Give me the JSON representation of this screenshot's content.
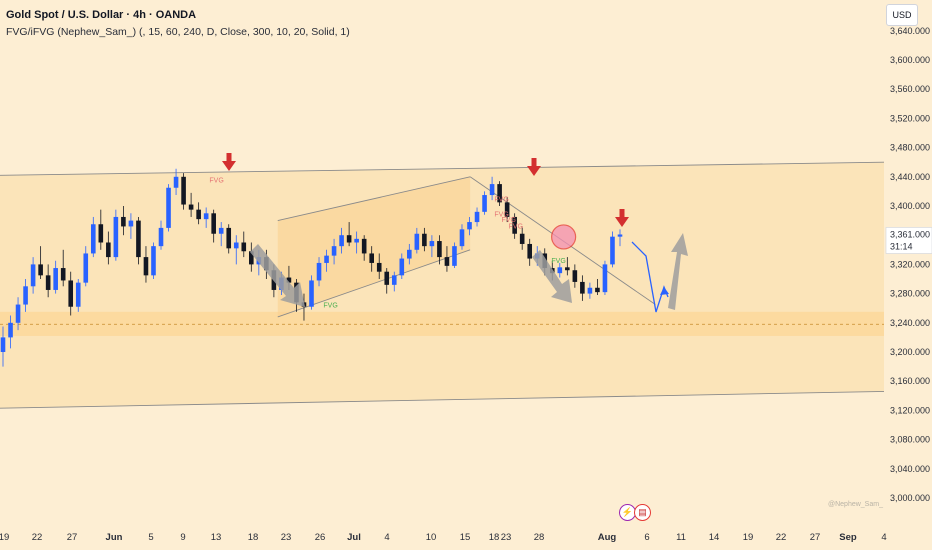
{
  "header": {
    "title": "Gold Spot / U.S. Dollar · 4h · OANDA",
    "indicator": "FVG/iFVG (Nephew_Sam_) (, 15, 60, 240, D, Close, 300, 10, 20, Solid, 1)"
  },
  "currency": "USD",
  "watermark": "@Nephew_Sam_",
  "icons": {
    "event1": "lightning-event-icon",
    "event2": "us-flag-event-icon"
  },
  "colors": {
    "bull": "#2962ff",
    "bear": "#131722",
    "background": "#fdeed3",
    "zone": "#fbd89a",
    "arrow_red": "#d32f2f",
    "arrow_gray": "#9e9e9e",
    "forecast": "#2962ff",
    "fvg_red": "#e57373",
    "fvg_green": "#4caf50"
  },
  "chart_data": {
    "type": "candlestick",
    "symbol": "Gold Spot / U.S. Dollar",
    "timeframe": "4h",
    "y_ticks": [
      3640,
      3600,
      3560,
      3520,
      3480,
      3440,
      3400,
      3361,
      3320,
      3280,
      3240,
      3200,
      3160,
      3120,
      3080,
      3040,
      3000
    ],
    "y_tick_labels": [
      "3,640.000",
      "3,600.000",
      "3,560.000",
      "3,520.000",
      "3,480.000",
      "3,440.000",
      "3,400.000",
      "3,361.000",
      "3,320.000",
      "3,280.000",
      "3,240.000",
      "3,200.000",
      "3,160.000",
      "3,120.000",
      "3,080.000",
      "3,040.000",
      "3,000.000"
    ],
    "x_tick_labels": [
      "19",
      "22",
      "27",
      "Jun",
      "5",
      "9",
      "13",
      "18",
      "23",
      "26",
      "Jul",
      "4",
      "10",
      "15",
      "18",
      "23",
      "28",
      "Aug",
      "6",
      "11",
      "14",
      "19",
      "22",
      "27",
      "Sep",
      "4"
    ],
    "x_tick_bold": [
      "Jun",
      "Jul",
      "Aug",
      "Sep"
    ],
    "current_price": {
      "value": 3361,
      "label": "3,361.000",
      "countdown": "31:14"
    },
    "fvg_labels": [
      {
        "text": "FVG",
        "date": "Jun 15",
        "price": 3436,
        "color": "red"
      },
      {
        "text": "FVG",
        "date": "Jul 1",
        "price": 3265,
        "color": "green"
      },
      {
        "text": "FVG",
        "date": "Jul 25",
        "price": 3410,
        "color": "red"
      },
      {
        "text": "FVG",
        "date": "Jul 25",
        "price": 3390,
        "color": "red"
      },
      {
        "text": "FVG",
        "date": "Jul 26",
        "price": 3382,
        "color": "red"
      },
      {
        "text": "FVG",
        "date": "Jul 27",
        "price": 3373,
        "color": "red"
      },
      {
        "text": "FVG",
        "date": "Aug 2",
        "price": 3326,
        "color": "green"
      }
    ],
    "support_zone": {
      "top": 3255,
      "bottom": 3222,
      "midline": 3238
    },
    "channel_top": [
      {
        "date": "May 19",
        "price": 3442
      },
      {
        "date": "Sep 4",
        "price": 3460
      }
    ],
    "channel_bottom": [
      {
        "date": "May 19",
        "price": 3123
      },
      {
        "date": "Sep 4",
        "price": 3146
      }
    ],
    "rising_wedge_upper": [
      {
        "date": "Jun 26",
        "price": 3380
      },
      {
        "date": "Jul 23",
        "price": 3440
      }
    ],
    "rising_wedge_lower": [
      {
        "date": "Jun 26",
        "price": 3248
      },
      {
        "date": "Jul 23",
        "price": 3340
      }
    ],
    "descending_trendline": [
      {
        "date": "Jul 23",
        "price": 3440
      },
      {
        "date": "Aug 18",
        "price": 3265
      }
    ],
    "resistance_circle": {
      "date": "Aug 4",
      "price": 3359
    },
    "candles_description": "4h candles; rise to ~3440 mid-June, decline to ~3250 late June, rising channel to ~3440 on Jul 23, drop to ~3275 end of July, rebound to ~3361",
    "candles": {
      "start": "May 19",
      "ohlc": [
        [
          3200,
          3235,
          3180,
          3220
        ],
        [
          3220,
          3250,
          3205,
          3240
        ],
        [
          3240,
          3275,
          3230,
          3265
        ],
        [
          3265,
          3300,
          3255,
          3290
        ],
        [
          3290,
          3330,
          3280,
          3320
        ],
        [
          3320,
          3345,
          3300,
          3305
        ],
        [
          3305,
          3320,
          3275,
          3285
        ],
        [
          3285,
          3325,
          3280,
          3315
        ],
        [
          3315,
          3340,
          3290,
          3298
        ],
        [
          3298,
          3310,
          3250,
          3262
        ],
        [
          3262,
          3300,
          3255,
          3295
        ],
        [
          3295,
          3345,
          3290,
          3335
        ],
        [
          3335,
          3385,
          3330,
          3375
        ],
        [
          3375,
          3395,
          3340,
          3350
        ],
        [
          3350,
          3365,
          3320,
          3330
        ],
        [
          3330,
          3395,
          3325,
          3385
        ],
        [
          3385,
          3400,
          3360,
          3372
        ],
        [
          3372,
          3390,
          3355,
          3380
        ],
        [
          3380,
          3385,
          3320,
          3330
        ],
        [
          3330,
          3345,
          3295,
          3305
        ],
        [
          3305,
          3350,
          3300,
          3345
        ],
        [
          3345,
          3380,
          3340,
          3370
        ],
        [
          3370,
          3430,
          3365,
          3425
        ],
        [
          3425,
          3451,
          3415,
          3440
        ],
        [
          3440,
          3445,
          3395,
          3402
        ],
        [
          3402,
          3418,
          3385,
          3395
        ],
        [
          3395,
          3405,
          3375,
          3382
        ],
        [
          3382,
          3398,
          3370,
          3390
        ],
        [
          3390,
          3395,
          3350,
          3362
        ],
        [
          3362,
          3378,
          3345,
          3370
        ],
        [
          3370,
          3375,
          3335,
          3342
        ],
        [
          3342,
          3360,
          3320,
          3350
        ],
        [
          3350,
          3365,
          3330,
          3338
        ],
        [
          3338,
          3350,
          3310,
          3320
        ],
        [
          3320,
          3340,
          3305,
          3330
        ],
        [
          3330,
          3340,
          3300,
          3312
        ],
        [
          3312,
          3320,
          3275,
          3285
        ],
        [
          3285,
          3310,
          3278,
          3302
        ],
        [
          3302,
          3318,
          3285,
          3295
        ],
        [
          3295,
          3300,
          3255,
          3268
        ],
        [
          3268,
          3280,
          3243,
          3262
        ],
        [
          3262,
          3305,
          3258,
          3298
        ],
        [
          3298,
          3330,
          3290,
          3322
        ],
        [
          3322,
          3340,
          3310,
          3332
        ],
        [
          3332,
          3355,
          3320,
          3345
        ],
        [
          3345,
          3370,
          3335,
          3360
        ],
        [
          3360,
          3378,
          3345,
          3350
        ],
        [
          3350,
          3365,
          3335,
          3355
        ],
        [
          3355,
          3360,
          3325,
          3335
        ],
        [
          3335,
          3345,
          3310,
          3322
        ],
        [
          3322,
          3335,
          3300,
          3310
        ],
        [
          3310,
          3315,
          3280,
          3292
        ],
        [
          3292,
          3310,
          3283,
          3305
        ],
        [
          3305,
          3335,
          3300,
          3328
        ],
        [
          3328,
          3348,
          3320,
          3340
        ],
        [
          3340,
          3370,
          3335,
          3362
        ],
        [
          3362,
          3370,
          3338,
          3345
        ],
        [
          3345,
          3360,
          3330,
          3352
        ],
        [
          3352,
          3360,
          3320,
          3330
        ],
        [
          3330,
          3345,
          3310,
          3318
        ],
        [
          3318,
          3350,
          3315,
          3345
        ],
        [
          3345,
          3375,
          3340,
          3368
        ],
        [
          3368,
          3385,
          3360,
          3378
        ],
        [
          3378,
          3398,
          3372,
          3392
        ],
        [
          3392,
          3420,
          3388,
          3415
        ],
        [
          3415,
          3440,
          3408,
          3430
        ],
        [
          3430,
          3434,
          3400,
          3405
        ],
        [
          3405,
          3412,
          3378,
          3385
        ],
        [
          3385,
          3390,
          3355,
          3362
        ],
        [
          3362,
          3372,
          3340,
          3348
        ],
        [
          3348,
          3355,
          3318,
          3328
        ],
        [
          3328,
          3345,
          3318,
          3335
        ],
        [
          3335,
          3342,
          3305,
          3315
        ],
        [
          3315,
          3325,
          3298,
          3308
        ],
        [
          3308,
          3322,
          3302,
          3316
        ],
        [
          3316,
          3330,
          3305,
          3312
        ],
        [
          3312,
          3320,
          3288,
          3296
        ],
        [
          3296,
          3305,
          3270,
          3280
        ],
        [
          3280,
          3295,
          3273,
          3288
        ],
        [
          3288,
          3300,
          3278,
          3282
        ],
        [
          3282,
          3325,
          3278,
          3320
        ],
        [
          3320,
          3365,
          3316,
          3358
        ],
        [
          3358,
          3368,
          3345,
          3361
        ]
      ]
    }
  }
}
